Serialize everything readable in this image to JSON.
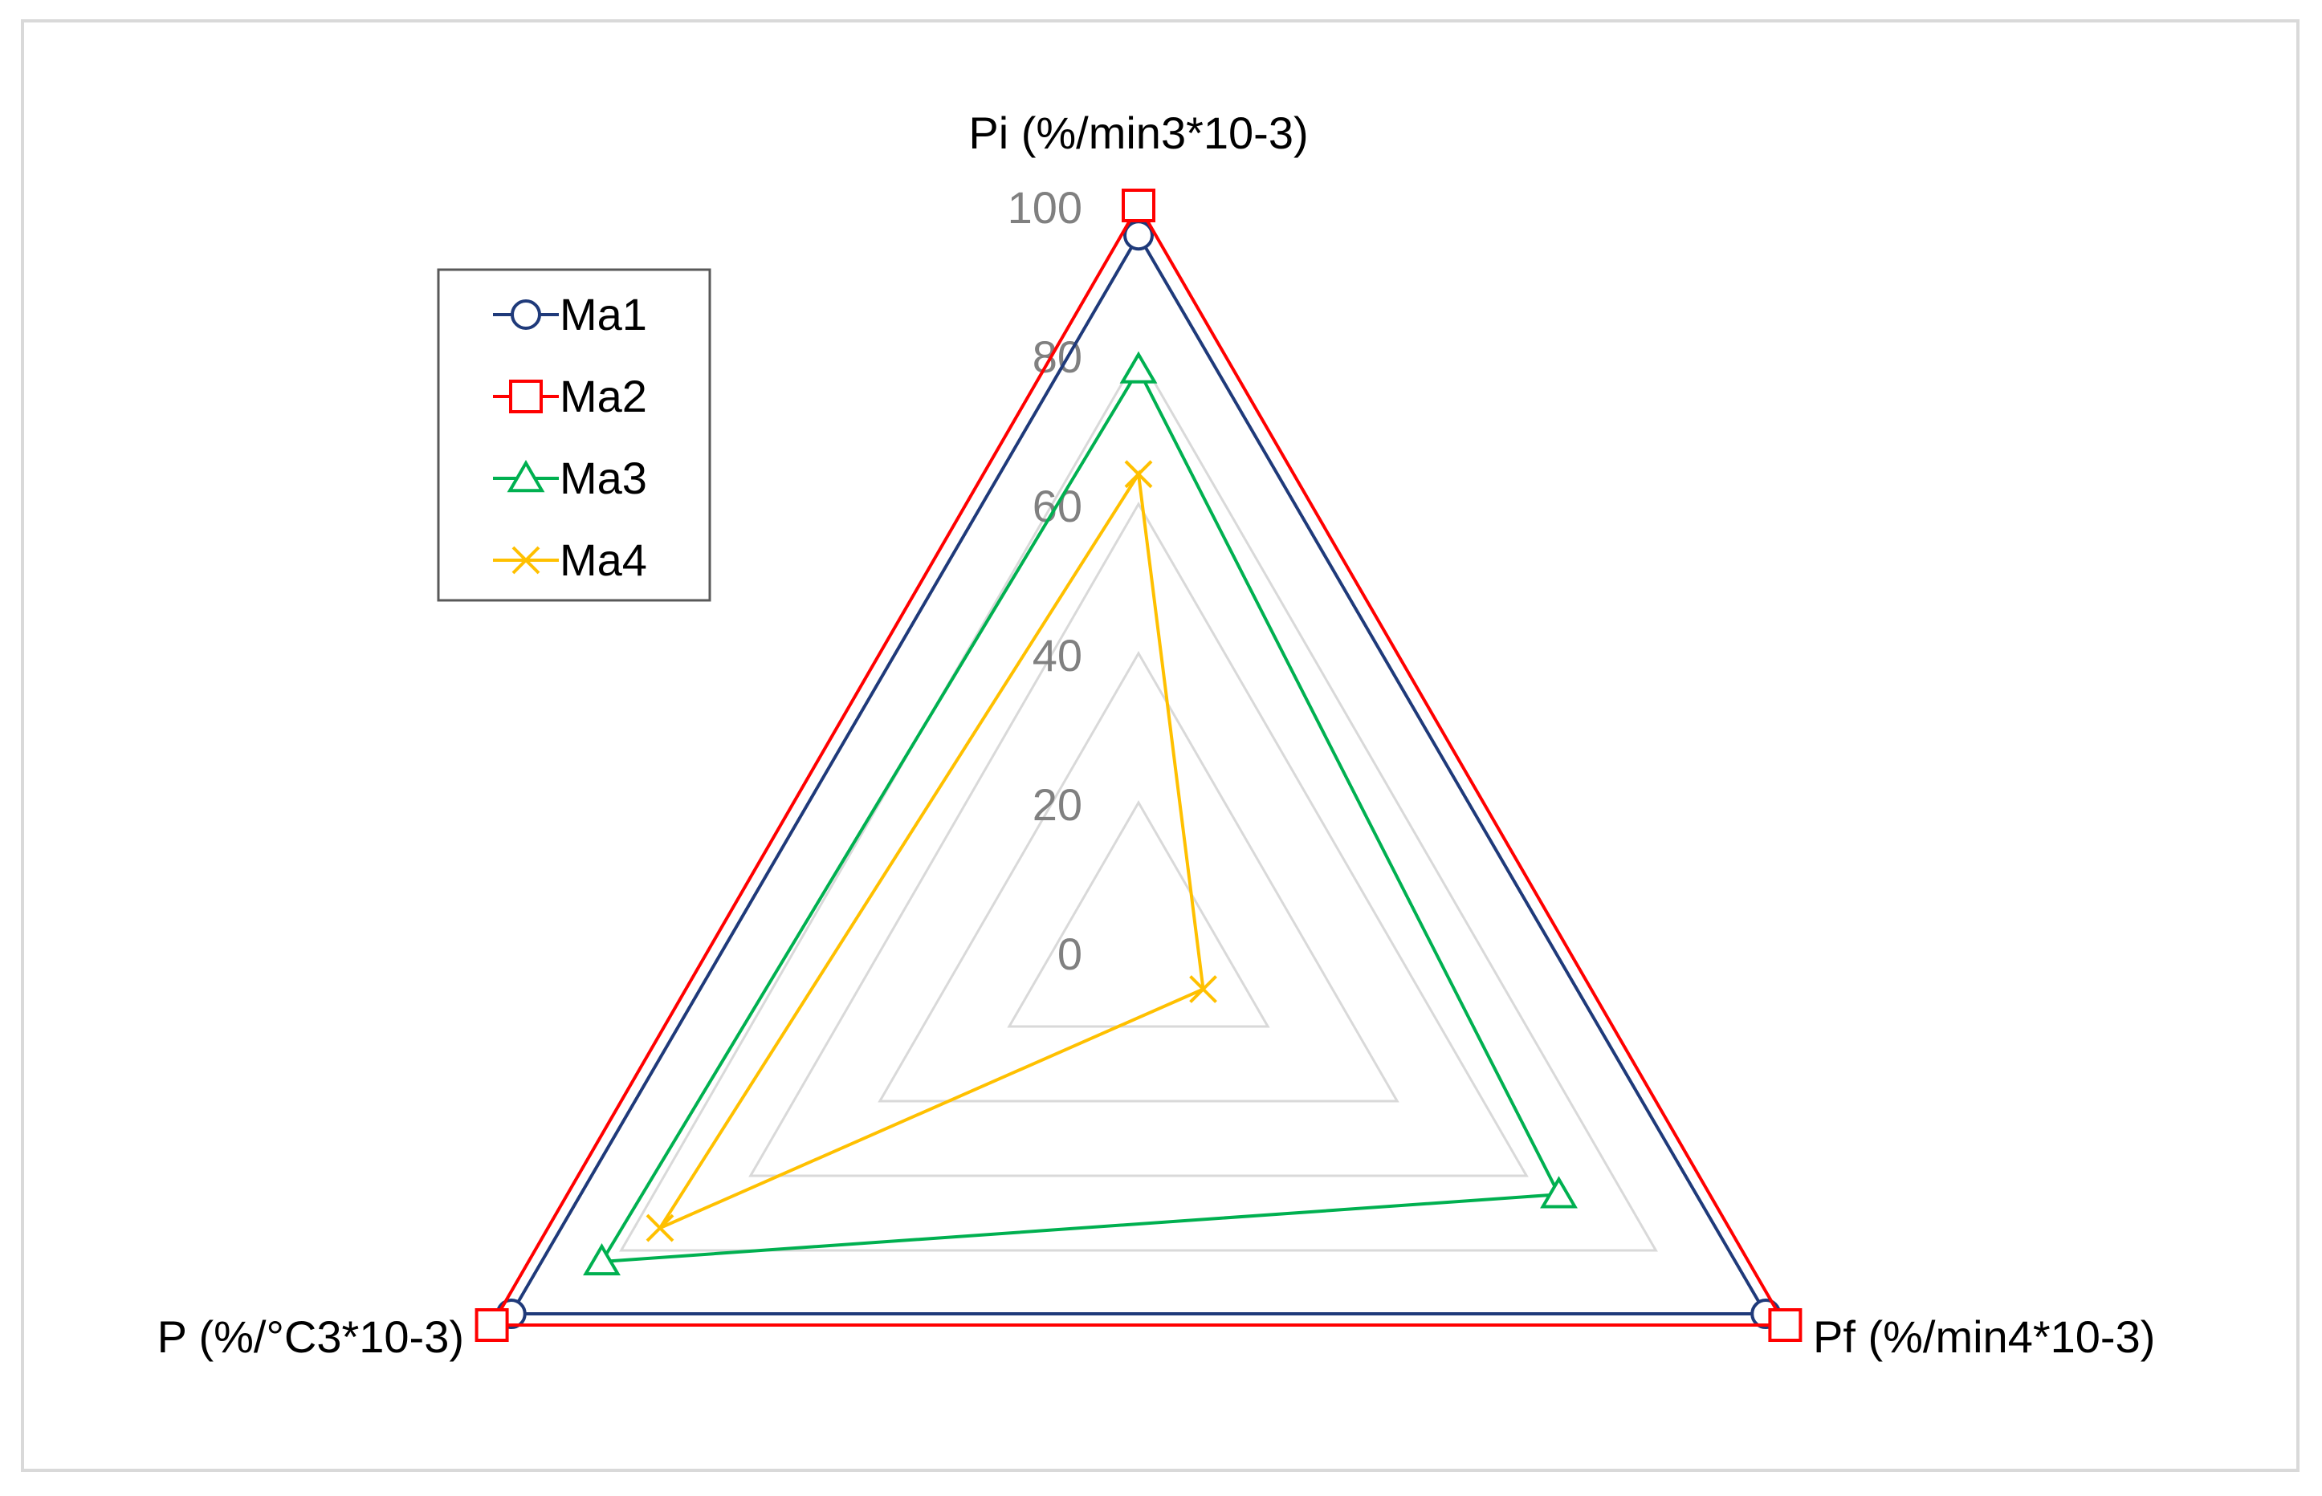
{
  "chart_data": {
    "type": "radar",
    "axes": [
      "Pi (%/min3*10-3)",
      "Pf (%/min4*10-3)",
      "P (%/°C3*10-3)"
    ],
    "r_ticks": [
      "0",
      "20",
      "40",
      "60",
      "80",
      "100"
    ],
    "r_range": [
      0,
      100
    ],
    "grid": true,
    "legend_position": "top-left",
    "series": [
      {
        "name": "Ma1",
        "values": [
          96,
          97,
          97
        ],
        "color": "#1f3a7a",
        "marker": "circle"
      },
      {
        "name": "Ma2",
        "values": [
          100,
          100,
          100
        ],
        "color": "#ff0000",
        "marker": "square"
      },
      {
        "name": "Ma3",
        "values": [
          78,
          65,
          83
        ],
        "color": "#00b050",
        "marker": "triangle"
      },
      {
        "name": "Ma4",
        "values": [
          64,
          10,
          74
        ],
        "color": "#ffc000",
        "marker": "x"
      }
    ]
  }
}
